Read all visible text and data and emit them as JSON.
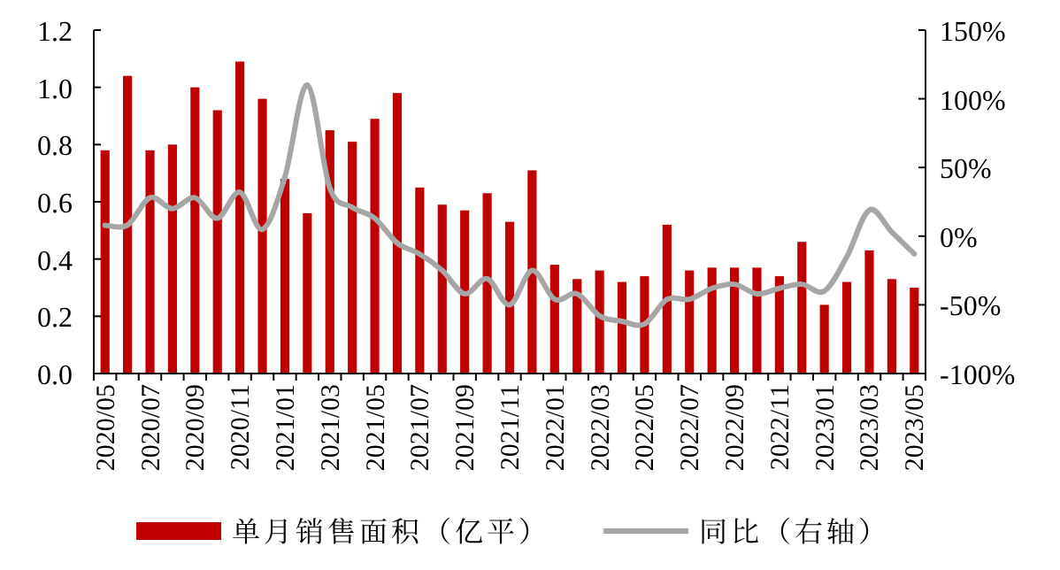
{
  "chart_data": {
    "type": "bar",
    "categories": [
      "2020/05",
      null,
      "2020/07",
      null,
      "2020/09",
      null,
      "2020/11",
      null,
      "2021/01",
      null,
      "2021/03",
      null,
      "2021/05",
      null,
      "2021/07",
      null,
      "2021/09",
      null,
      "2021/11",
      null,
      "2022/01",
      null,
      "2022/03",
      null,
      "2022/05",
      null,
      "2022/07",
      null,
      "2022/09",
      null,
      "2022/11",
      null,
      "2023/01",
      null,
      "2023/03",
      null,
      "2023/05"
    ],
    "series": [
      {
        "name": "单月销售面积（亿平）",
        "color": "#c00000",
        "values": [
          0.78,
          1.04,
          0.78,
          0.8,
          1.0,
          0.92,
          1.09,
          0.96,
          0.68,
          0.56,
          0.85,
          0.81,
          0.89,
          0.98,
          0.65,
          0.59,
          0.57,
          0.63,
          0.53,
          0.71,
          0.38,
          0.33,
          0.36,
          0.32,
          0.34,
          0.52,
          0.36,
          0.37,
          0.37,
          0.37,
          0.34,
          0.46,
          0.24,
          0.32,
          0.43,
          0.33,
          0.3
        ]
      },
      {
        "name": "同比（右轴）",
        "type": "line",
        "axis": "y2",
        "color": "#a6a6a6",
        "values": [
          8,
          8,
          28,
          20,
          28,
          13,
          32,
          5,
          43,
          110,
          35,
          21,
          13,
          -5,
          -13,
          -25,
          -42,
          -31,
          -50,
          -25,
          -46,
          -42,
          -58,
          -62,
          -64,
          -46,
          -46,
          -38,
          -35,
          -42,
          -38,
          -35,
          -40,
          -15,
          19,
          3,
          -13
        ]
      }
    ],
    "ylim": [
      0,
      1.2
    ],
    "yticks": [
      {
        "value": 0,
        "label": "0.0"
      },
      {
        "value": 0.2,
        "label": "0.2"
      },
      {
        "value": 0.4,
        "label": "0.4"
      },
      {
        "value": 0.6,
        "label": "0.6"
      },
      {
        "value": 0.8,
        "label": "0.8"
      },
      {
        "value": 1,
        "label": "1.0"
      },
      {
        "value": 1.2,
        "label": "1.2"
      }
    ],
    "y2lim": [
      -100,
      150
    ],
    "y2ticks": [
      {
        "value": -100,
        "label": "-100%"
      },
      {
        "value": -50,
        "label": "-50%"
      },
      {
        "value": 0,
        "label": "0%"
      },
      {
        "value": 50,
        "label": "50%"
      },
      {
        "value": 100,
        "label": "100%"
      },
      {
        "value": 150,
        "label": "150%"
      }
    ],
    "legend": "bottom",
    "grid": false
  }
}
